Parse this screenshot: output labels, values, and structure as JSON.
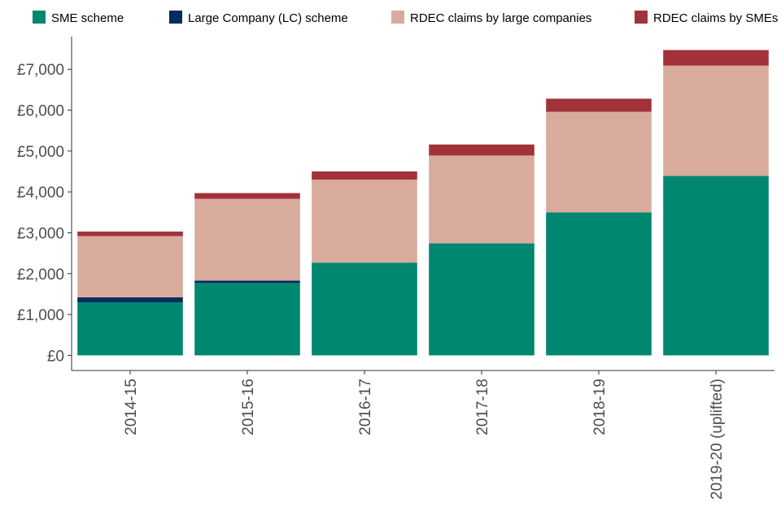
{
  "chart_data": {
    "type": "bar",
    "stacked": true,
    "categories": [
      "2014-15",
      "2015-16",
      "2016-17",
      "2017-18",
      "2018-19",
      "2019-20 (uplifted)"
    ],
    "series": [
      {
        "name": "SME scheme",
        "color": "#008770",
        "values": [
          1300,
          1770,
          2270,
          2740,
          3500,
          4390
        ]
      },
      {
        "name": "Large Company (LC) scheme",
        "color": "#002d5f",
        "values": [
          120,
          60,
          0,
          0,
          0,
          0
        ]
      },
      {
        "name": "RDEC claims by large companies",
        "color": "#d8ab9c",
        "values": [
          1500,
          2000,
          2030,
          2150,
          2460,
          2700
        ]
      },
      {
        "name": "RDEC claims by SMEs",
        "color": "#a2323a",
        "values": [
          110,
          140,
          200,
          270,
          320,
          380
        ]
      }
    ],
    "yticks": [
      "£0",
      "£1,000",
      "£2,000",
      "£3,000",
      "£4,000",
      "£5,000",
      "£6,000",
      "£7,000"
    ],
    "ytick_values": [
      0,
      1000,
      2000,
      3000,
      4000,
      5000,
      6000,
      7000
    ],
    "ylim": [
      -370,
      7800
    ],
    "grid": false,
    "legend_position": "top",
    "xlabel": "",
    "ylabel": "",
    "title": ""
  }
}
